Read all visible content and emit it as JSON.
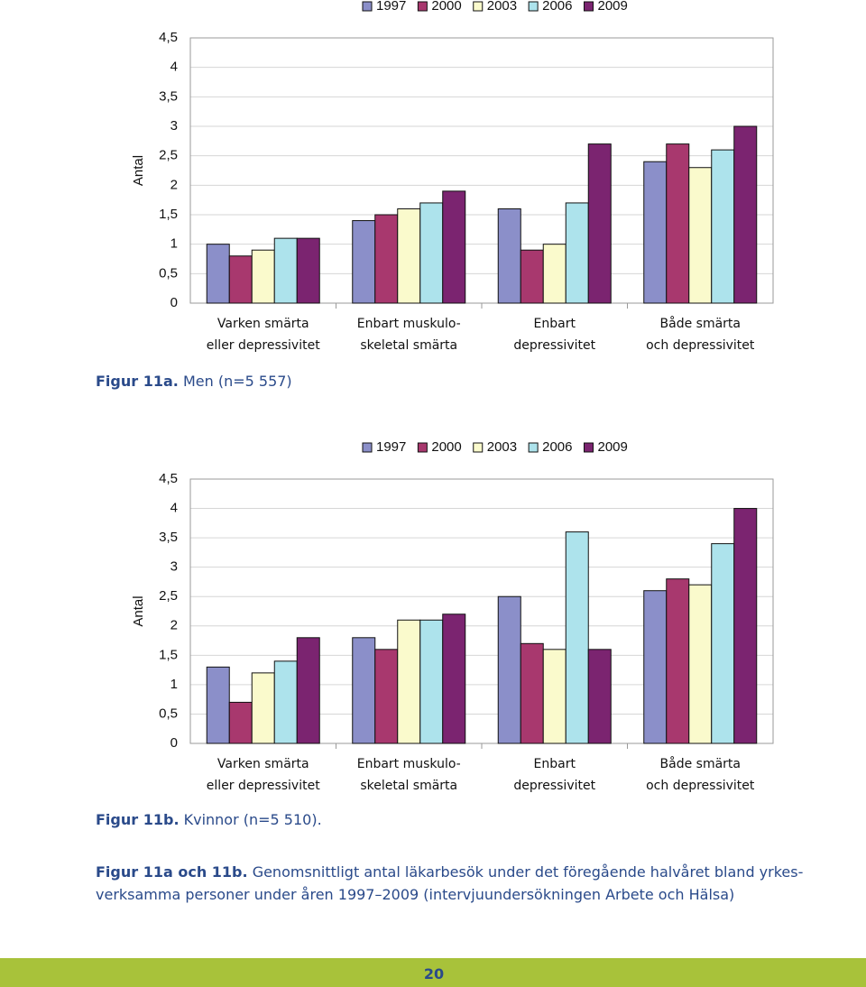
{
  "chart_data": [
    {
      "type": "bar",
      "y_label": "Antal",
      "categories": [
        [
          "Varken smärta",
          "eller depressivitet"
        ],
        [
          "Enbart muskulo-",
          "skeletal smärta"
        ],
        [
          "Enbart",
          "depressivitet"
        ],
        [
          "Både smärta",
          "och depressivitet"
        ]
      ],
      "series": [
        {
          "name": "1997",
          "color": "#8b8fc9",
          "values": [
            1.0,
            1.4,
            1.6,
            2.4
          ]
        },
        {
          "name": "2000",
          "color": "#a8386e",
          "values": [
            0.8,
            1.5,
            0.9,
            2.7
          ]
        },
        {
          "name": "2003",
          "color": "#fafacc",
          "values": [
            0.9,
            1.6,
            1.0,
            2.3
          ]
        },
        {
          "name": "2006",
          "color": "#ade3ec",
          "values": [
            1.1,
            1.7,
            1.7,
            2.6
          ]
        },
        {
          "name": "2009",
          "color": "#7b2470",
          "values": [
            1.1,
            1.9,
            2.7,
            3.0
          ]
        }
      ],
      "ylim": [
        0,
        4.5
      ],
      "yticks": [
        0,
        {
          "value": 0.5,
          "label": "0,5"
        },
        1,
        {
          "value": 1.5,
          "label": "1,5"
        },
        2,
        {
          "value": 2.5,
          "label": "2,5"
        },
        3,
        {
          "value": 3.5,
          "label": "3,5"
        },
        4,
        {
          "value": 4.5,
          "label": "4,5"
        }
      ],
      "grid": true,
      "caption": {
        "label": "Figur 11a.",
        "text": "Men (n=5 557)"
      }
    },
    {
      "type": "bar",
      "y_label": "Antal",
      "categories": [
        [
          "Varken smärta",
          "eller depressivitet"
        ],
        [
          "Enbart muskulo-",
          "skeletal smärta"
        ],
        [
          "Enbart",
          "depressivitet"
        ],
        [
          "Både smärta",
          "och depressivitet"
        ]
      ],
      "series": [
        {
          "name": "1997",
          "color": "#8b8fc9",
          "values": [
            1.3,
            1.8,
            2.5,
            2.6
          ]
        },
        {
          "name": "2000",
          "color": "#a8386e",
          "values": [
            0.7,
            1.6,
            1.7,
            2.8
          ]
        },
        {
          "name": "2003",
          "color": "#fafacc",
          "values": [
            1.2,
            2.1,
            1.6,
            2.7
          ]
        },
        {
          "name": "2006",
          "color": "#ade3ec",
          "values": [
            1.4,
            2.1,
            3.6,
            3.4
          ]
        },
        {
          "name": "2009",
          "color": "#7b2470",
          "values": [
            1.8,
            2.2,
            1.6,
            4.0
          ]
        }
      ],
      "ylim": [
        0,
        4.5
      ],
      "yticks": [
        0,
        {
          "value": 0.5,
          "label": "0,5"
        },
        1,
        {
          "value": 1.5,
          "label": "1,5"
        },
        2,
        {
          "value": 2.5,
          "label": "2,5"
        },
        3,
        {
          "value": 3.5,
          "label": "3,5"
        },
        4,
        {
          "value": 4.5,
          "label": "4,5"
        }
      ],
      "grid": true,
      "caption": {
        "label": "Figur 11b.",
        "text": "Kvinnor (n=5 510)."
      }
    }
  ],
  "caption": {
    "label": "Figur 11a och 11b.",
    "lines": [
      "Genomsnittligt antal läkarbesök under det föregående halvåret bland yrkes-",
      "verksamma personer under åren 1997–2009 (intervjuundersökningen Arbete och Hälsa)"
    ]
  },
  "page_number": "20"
}
